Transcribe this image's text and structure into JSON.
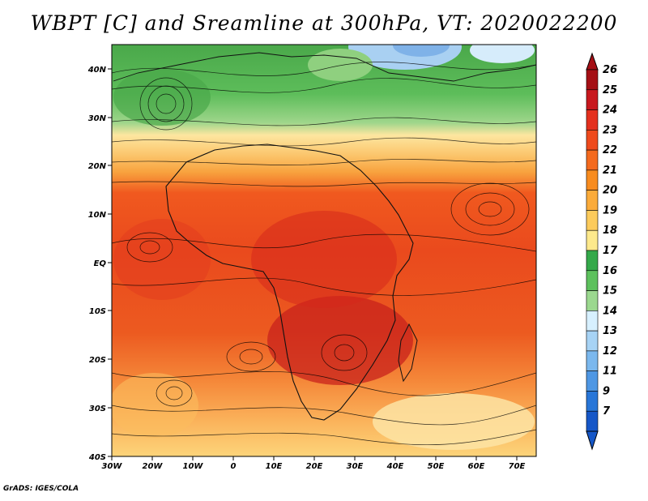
{
  "title": "WBPT [C] and Sreamline at 300hPa, VT: 2020022200",
  "footer": "GrADS: IGES/COLA",
  "lon_labels": [
    "30W",
    "20W",
    "10W",
    "0",
    "10E",
    "20E",
    "30E",
    "40E",
    "50E",
    "60E",
    "70E"
  ],
  "lat_labels": [
    "40N",
    "30N",
    "20N",
    "10N",
    "EQ",
    "10S",
    "20S",
    "30S",
    "40S"
  ],
  "colorbar": {
    "levels": [
      "26",
      "25",
      "24",
      "23",
      "22",
      "21",
      "20",
      "19",
      "18",
      "17",
      "16",
      "15",
      "14",
      "13",
      "12",
      "11",
      "9",
      "7"
    ],
    "colors": [
      "#a50f15",
      "#c8181e",
      "#e4301e",
      "#ef4a1c",
      "#f46a1e",
      "#f88c1f",
      "#fbab3a",
      "#fccb5c",
      "#fde98c",
      "#34a94a",
      "#5dc15d",
      "#9bd88f",
      "#d7f0ff",
      "#a7d3f5",
      "#7bb8ee",
      "#4e97e4",
      "#2876d8",
      "#1657c8"
    ]
  }
}
